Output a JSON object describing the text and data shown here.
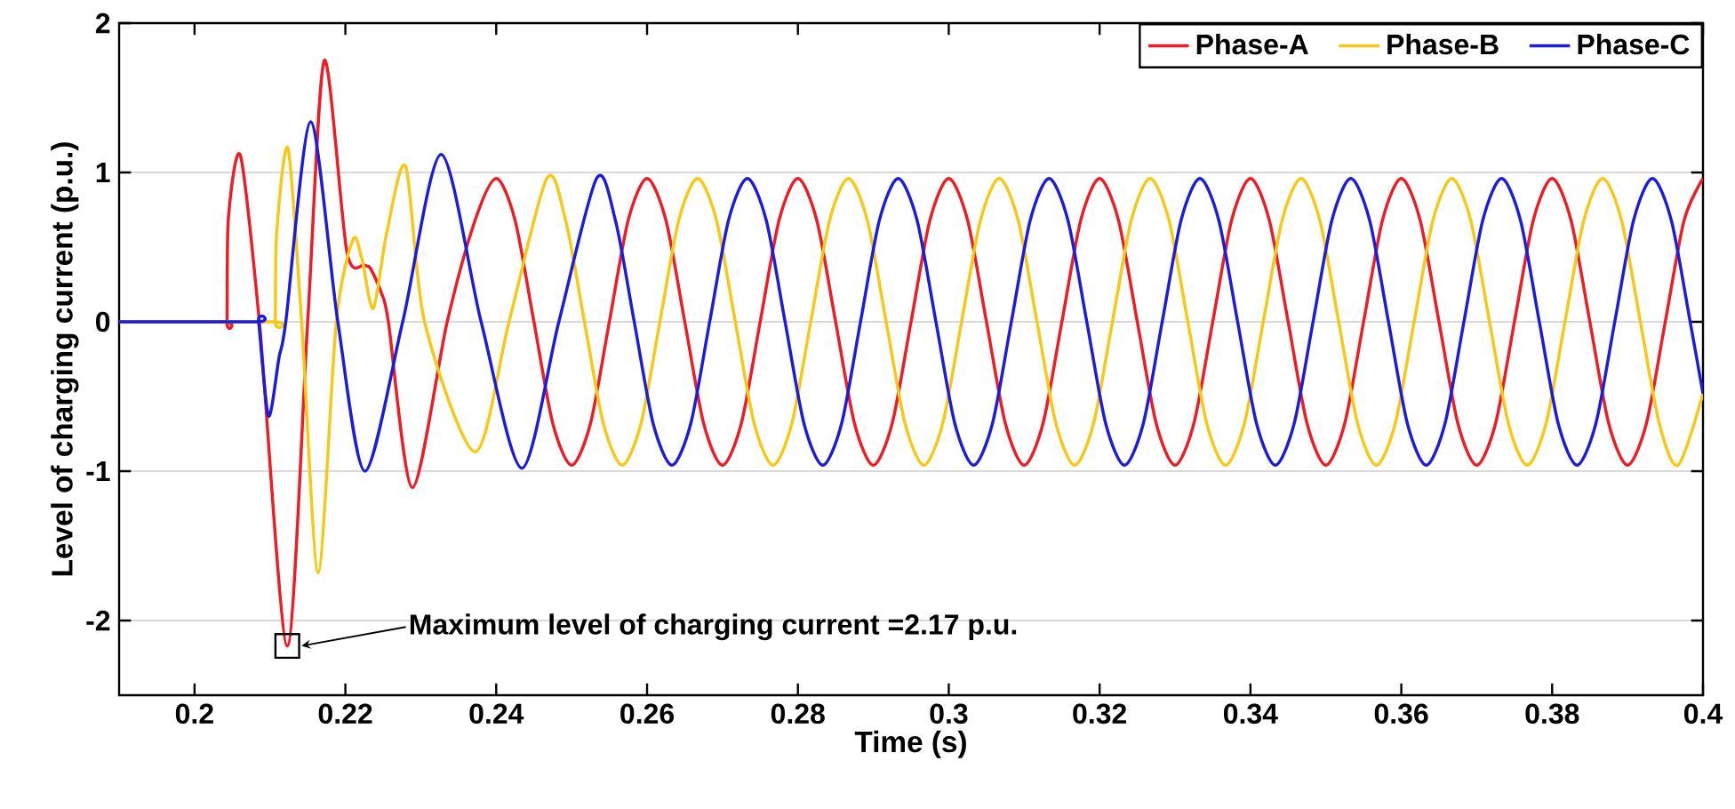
{
  "chart_data": {
    "type": "line",
    "xlabel": "Time (s)",
    "ylabel": "Level of charging current (p.u.)",
    "xlim": [
      0.19,
      0.4
    ],
    "ylim": [
      -2.5,
      2
    ],
    "xticks": [
      0.2,
      0.22,
      0.24,
      0.26,
      0.28,
      0.3,
      0.32,
      0.34,
      0.36,
      0.38,
      0.4
    ],
    "yticks": [
      -2,
      -1,
      0,
      1,
      2
    ],
    "grid": "y",
    "legend": "top right",
    "line_style": "solid",
    "annotations": [
      "Maximum level of charging current =2.17 p.u."
    ],
    "series": [
      {
        "name": "Phase-A",
        "color": "#ee1c25",
        "x": [
          0.19,
          0.204,
          0.2043,
          0.2045,
          0.2061,
          0.2086,
          0.2123,
          0.215,
          0.2172,
          0.2202,
          0.2225,
          0.2233,
          0.2248,
          0.2257,
          0.2289,
          0.2335,
          0.2372,
          0.24,
          0.2425,
          0.245,
          0.2475,
          0.25,
          0.2525,
          0.255,
          0.2575,
          0.26,
          0.2625,
          0.265,
          0.2675,
          0.27,
          0.2725,
          0.275,
          0.2775,
          0.28,
          0.2825,
          0.285,
          0.2875,
          0.29,
          0.2925,
          0.295,
          0.2975,
          0.3,
          0.3025,
          0.305,
          0.3075,
          0.31,
          0.3125,
          0.315,
          0.3175,
          0.32,
          0.3225,
          0.325,
          0.3275,
          0.33,
          0.3325,
          0.335,
          0.3375,
          0.34,
          0.3425,
          0.345,
          0.3475,
          0.35,
          0.3525,
          0.355,
          0.3575,
          0.36,
          0.3625,
          0.365,
          0.3675,
          0.37,
          0.3725,
          0.375,
          0.3775,
          0.38,
          0.3825,
          0.385,
          0.3875,
          0.39,
          0.3925,
          0.395,
          0.3975,
          0.4
        ],
        "values": [
          0,
          0,
          0,
          0.7,
          1.11,
          0,
          -2.17,
          0,
          1.75,
          0.47,
          0.38,
          0.36,
          0.19,
          0,
          -1.11,
          0,
          0.68,
          0.96,
          0.68,
          0,
          -0.68,
          -0.96,
          -0.68,
          0,
          0.68,
          0.96,
          0.68,
          0,
          -0.68,
          -0.96,
          -0.68,
          0,
          0.68,
          0.96,
          0.68,
          0,
          -0.68,
          -0.96,
          -0.68,
          0,
          0.68,
          0.96,
          0.68,
          0,
          -0.68,
          -0.96,
          -0.68,
          0,
          0.68,
          0.96,
          0.68,
          0,
          -0.68,
          -0.96,
          -0.68,
          0,
          0.68,
          0.96,
          0.68,
          0,
          -0.68,
          -0.96,
          -0.68,
          0,
          0.68,
          0.96,
          0.68,
          0,
          -0.68,
          -0.96,
          -0.68,
          0,
          0.68,
          0.96,
          0.68,
          0,
          -0.68,
          -0.96,
          -0.68,
          0,
          0.68,
          0.96
        ]
      },
      {
        "name": "Phase-B",
        "color": "#f7c815",
        "x": [
          0.19,
          0.2104,
          0.2107,
          0.2109,
          0.2124,
          0.2142,
          0.2164,
          0.2188,
          0.221,
          0.2222,
          0.2237,
          0.2255,
          0.228,
          0.2305,
          0.2372,
          0.2417,
          0.2467,
          0.2492,
          0.2517,
          0.2542,
          0.2567,
          0.2592,
          0.2617,
          0.2642,
          0.2667,
          0.2692,
          0.2717,
          0.2742,
          0.2767,
          0.2792,
          0.2817,
          0.2842,
          0.2867,
          0.2892,
          0.2917,
          0.2942,
          0.2967,
          0.2992,
          0.3017,
          0.3042,
          0.3067,
          0.3092,
          0.3117,
          0.3142,
          0.3167,
          0.3192,
          0.3217,
          0.3242,
          0.3267,
          0.3292,
          0.3317,
          0.3342,
          0.3367,
          0.3392,
          0.3417,
          0.3442,
          0.3467,
          0.3492,
          0.3517,
          0.3542,
          0.3567,
          0.3592,
          0.3617,
          0.3642,
          0.3667,
          0.3692,
          0.3717,
          0.3742,
          0.3767,
          0.3792,
          0.3817,
          0.3842,
          0.3867,
          0.3892,
          0.3917,
          0.3942,
          0.3967,
          0.4
        ],
        "values": [
          0,
          0,
          0,
          0.6,
          1.16,
          0,
          -1.68,
          0,
          0.55,
          0.42,
          0.09,
          0.6,
          1.04,
          0,
          -0.87,
          0,
          0.96,
          0.68,
          0,
          -0.68,
          -0.96,
          -0.68,
          0,
          0.68,
          0.96,
          0.68,
          0,
          -0.68,
          -0.96,
          -0.68,
          0,
          0.68,
          0.96,
          0.68,
          0,
          -0.68,
          -0.96,
          -0.68,
          0,
          0.68,
          0.96,
          0.68,
          0,
          -0.68,
          -0.96,
          -0.68,
          0,
          0.68,
          0.96,
          0.68,
          0,
          -0.68,
          -0.96,
          -0.68,
          0,
          0.68,
          0.96,
          0.68,
          0,
          -0.68,
          -0.96,
          -0.68,
          0,
          0.68,
          0.96,
          0.68,
          0,
          -0.68,
          -0.96,
          -0.68,
          0,
          0.68,
          0.96,
          0.68,
          0,
          -0.68,
          -0.96,
          -0.48
        ]
      },
      {
        "name": "Phase-C",
        "color": "#1c1cdc",
        "x": [
          0.19,
          0.2082,
          0.2085,
          0.2098,
          0.2112,
          0.2121,
          0.2154,
          0.219,
          0.2226,
          0.2276,
          0.2327,
          0.238,
          0.2434,
          0.2483,
          0.2533,
          0.2558,
          0.2583,
          0.2608,
          0.2633,
          0.2658,
          0.2683,
          0.2708,
          0.2733,
          0.2758,
          0.2783,
          0.2808,
          0.2833,
          0.2858,
          0.2883,
          0.2908,
          0.2933,
          0.2958,
          0.2983,
          0.3008,
          0.3033,
          0.3058,
          0.3083,
          0.3108,
          0.3133,
          0.3158,
          0.3183,
          0.3208,
          0.3233,
          0.3258,
          0.3283,
          0.3308,
          0.3333,
          0.3358,
          0.3383,
          0.3408,
          0.3433,
          0.3458,
          0.3483,
          0.3508,
          0.3533,
          0.3558,
          0.3583,
          0.3608,
          0.3633,
          0.3658,
          0.3683,
          0.3708,
          0.3733,
          0.3758,
          0.3783,
          0.3808,
          0.3833,
          0.3858,
          0.3883,
          0.3908,
          0.3933,
          0.3958,
          0.3983,
          0.4
        ],
        "values": [
          0,
          0,
          0,
          -0.63,
          -0.24,
          0,
          1.34,
          0,
          -1.0,
          0,
          1.12,
          0,
          -0.98,
          0,
          0.96,
          0.68,
          0,
          -0.68,
          -0.96,
          -0.68,
          0,
          0.68,
          0.96,
          0.68,
          0,
          -0.68,
          -0.96,
          -0.68,
          0,
          0.68,
          0.96,
          0.68,
          0,
          -0.68,
          -0.96,
          -0.68,
          0,
          0.68,
          0.96,
          0.68,
          0,
          -0.68,
          -0.96,
          -0.68,
          0,
          0.68,
          0.96,
          0.68,
          0,
          -0.68,
          -0.96,
          -0.68,
          0,
          0.68,
          0.96,
          0.68,
          0,
          -0.68,
          -0.96,
          -0.68,
          0,
          0.68,
          0.96,
          0.68,
          0,
          -0.68,
          -0.96,
          -0.68,
          0,
          0.68,
          0.96,
          0.68,
          0,
          -0.48
        ]
      }
    ]
  }
}
